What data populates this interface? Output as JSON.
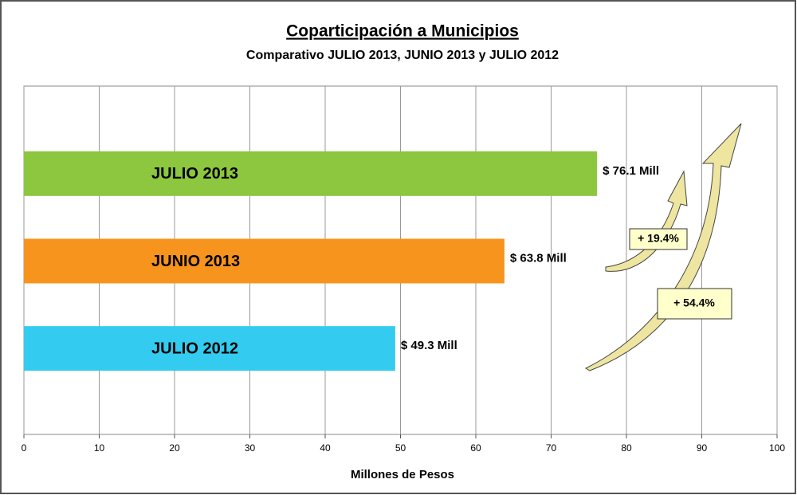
{
  "chart_data": {
    "type": "bar",
    "orientation": "horizontal",
    "title": "Coparticipación a Municipios",
    "subtitle": "Comparativo JULIO 2013, JUNIO 2013 y JULIO 2012",
    "xlabel": "Millones de Pesos",
    "categories": [
      "JULIO 2013",
      "JUNIO 2013",
      "JULIO 2012"
    ],
    "values": [
      76.1,
      63.8,
      49.3
    ],
    "value_labels": [
      "$ 76.1 Mill",
      "$ 63.8 Mill",
      "$ 49.3 Mill"
    ],
    "colors": [
      "#8dc63f",
      "#f7941d",
      "#33ccf0"
    ],
    "xlim": [
      0,
      100
    ],
    "xticks": [
      0,
      10,
      20,
      30,
      40,
      50,
      60,
      70,
      80,
      90,
      100
    ],
    "grid": true,
    "annotations": [
      "+ 19.4%",
      "+ 54.4%"
    ]
  }
}
